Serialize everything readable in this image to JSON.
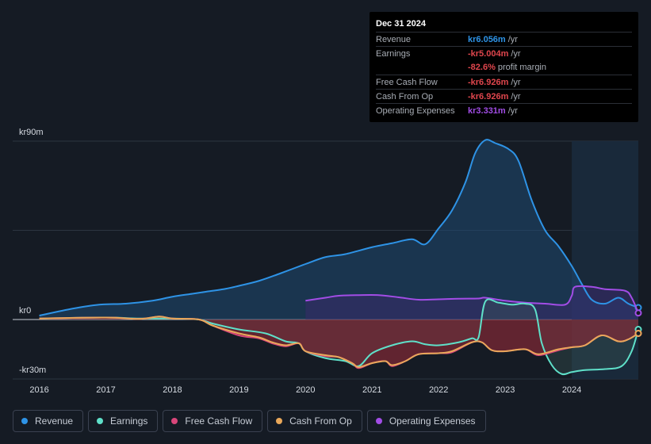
{
  "tooltip": {
    "date": "Dec 31 2024",
    "rows": [
      {
        "label": "Revenue",
        "value": "kr6.056m",
        "unit": "/yr",
        "color": "#2e93e6"
      },
      {
        "label": "Earnings",
        "value": "-kr5.004m",
        "unit": "/yr",
        "color": "#e0464d"
      },
      {
        "label": "",
        "value": "-82.6%",
        "unit": "profit margin",
        "color": "#e0464d"
      },
      {
        "label": "Free Cash Flow",
        "value": "-kr6.926m",
        "unit": "/yr",
        "color": "#e0464d"
      },
      {
        "label": "Cash From Op",
        "value": "-kr6.926m",
        "unit": "/yr",
        "color": "#e0464d"
      },
      {
        "label": "Operating Expenses",
        "value": "kr3.331m",
        "unit": "/yr",
        "color": "#a24de6"
      }
    ]
  },
  "legend": [
    {
      "label": "Revenue",
      "color": "#2e93e6"
    },
    {
      "label": "Earnings",
      "color": "#5fe0c9"
    },
    {
      "label": "Free Cash Flow",
      "color": "#d9467a"
    },
    {
      "label": "Cash From Op",
      "color": "#e9a85a"
    },
    {
      "label": "Operating Expenses",
      "color": "#a24de6"
    }
  ],
  "chart_data": {
    "type": "area",
    "title": "",
    "ylabel": "",
    "ylim": [
      -30,
      90
    ],
    "y_tick_labels": [
      {
        "value": 90,
        "label": "kr90m"
      },
      {
        "value": 0,
        "label": "kr0"
      },
      {
        "value": -30,
        "label": "-kr30m"
      }
    ],
    "x_tick_labels": [
      {
        "value": 2016,
        "label": "2016"
      },
      {
        "value": 2017,
        "label": "2017"
      },
      {
        "value": 2018,
        "label": "2018"
      },
      {
        "value": 2019,
        "label": "2019"
      },
      {
        "value": 2020,
        "label": "2020"
      },
      {
        "value": 2021,
        "label": "2021"
      },
      {
        "value": 2022,
        "label": "2022"
      },
      {
        "value": 2023,
        "label": "2023"
      },
      {
        "value": 2024,
        "label": "2024"
      }
    ],
    "xlim": [
      2015.6,
      2025.0
    ],
    "highlight_start": 2024.0,
    "series": [
      {
        "name": "Revenue",
        "color": "#2e93e6",
        "points": [
          [
            2016.0,
            2.0
          ],
          [
            2016.5,
            5.5
          ],
          [
            2016.9,
            7.5
          ],
          [
            2017.3,
            8.0
          ],
          [
            2017.7,
            9.5
          ],
          [
            2018.0,
            11.5
          ],
          [
            2018.3,
            13.0
          ],
          [
            2018.5,
            14.0
          ],
          [
            2018.8,
            15.5
          ],
          [
            2019.0,
            17.0
          ],
          [
            2019.3,
            19.5
          ],
          [
            2019.6,
            23.0
          ],
          [
            2020.0,
            28.0
          ],
          [
            2020.3,
            31.5
          ],
          [
            2020.6,
            33.0
          ],
          [
            2021.0,
            36.5
          ],
          [
            2021.3,
            38.5
          ],
          [
            2021.6,
            40.5
          ],
          [
            2021.8,
            38.0
          ],
          [
            2022.0,
            46.0
          ],
          [
            2022.2,
            55.0
          ],
          [
            2022.4,
            69.0
          ],
          [
            2022.55,
            84.0
          ],
          [
            2022.7,
            90.5
          ],
          [
            2022.85,
            89.0
          ],
          [
            2023.05,
            86.0
          ],
          [
            2023.2,
            80.0
          ],
          [
            2023.4,
            60.0
          ],
          [
            2023.6,
            45.0
          ],
          [
            2023.8,
            37.0
          ],
          [
            2024.0,
            27.0
          ],
          [
            2024.15,
            18.0
          ],
          [
            2024.3,
            10.0
          ],
          [
            2024.5,
            8.0
          ],
          [
            2024.7,
            11.0
          ],
          [
            2024.85,
            8.0
          ],
          [
            2025.0,
            6.0
          ]
        ]
      },
      {
        "name": "Operating Expenses",
        "color": "#a24de6",
        "points": [
          [
            2020.0,
            9.5
          ],
          [
            2020.3,
            11.0
          ],
          [
            2020.5,
            12.0
          ],
          [
            2020.8,
            12.3
          ],
          [
            2021.1,
            12.3
          ],
          [
            2021.4,
            11.2
          ],
          [
            2021.7,
            10.0
          ],
          [
            2022.0,
            10.2
          ],
          [
            2022.3,
            10.5
          ],
          [
            2022.6,
            10.6
          ],
          [
            2022.7,
            11.0
          ],
          [
            2023.0,
            9.5
          ],
          [
            2023.3,
            8.5
          ],
          [
            2023.6,
            8.0
          ],
          [
            2023.9,
            7.5
          ],
          [
            2024.0,
            12.0
          ],
          [
            2024.05,
            16.5
          ],
          [
            2024.3,
            16.5
          ],
          [
            2024.5,
            15.3
          ],
          [
            2024.8,
            14.5
          ],
          [
            2024.9,
            11.0
          ],
          [
            2025.0,
            3.3
          ]
        ]
      },
      {
        "name": "Earnings",
        "color": "#5fe0c9",
        "points": [
          [
            2016.0,
            0.5
          ],
          [
            2017.0,
            1.0
          ],
          [
            2017.5,
            0.5
          ],
          [
            2018.0,
            0.5
          ],
          [
            2018.4,
            0.0
          ],
          [
            2018.6,
            -2.0
          ],
          [
            2019.0,
            -5.0
          ],
          [
            2019.4,
            -7.0
          ],
          [
            2019.7,
            -11.0
          ],
          [
            2019.9,
            -12.0
          ],
          [
            2020.0,
            -16.0
          ],
          [
            2020.3,
            -19.5
          ],
          [
            2020.6,
            -21.0
          ],
          [
            2020.8,
            -23.5
          ],
          [
            2021.0,
            -17.0
          ],
          [
            2021.3,
            -13.0
          ],
          [
            2021.6,
            -11.0
          ],
          [
            2021.8,
            -12.5
          ],
          [
            2022.0,
            -13.0
          ],
          [
            2022.3,
            -11.5
          ],
          [
            2022.5,
            -9.5
          ],
          [
            2022.6,
            -9.0
          ],
          [
            2022.7,
            9.0
          ],
          [
            2022.9,
            8.5
          ],
          [
            2023.1,
            7.5
          ],
          [
            2023.3,
            8.0
          ],
          [
            2023.45,
            5.0
          ],
          [
            2023.55,
            -12.0
          ],
          [
            2023.7,
            -23.0
          ],
          [
            2023.85,
            -27.5
          ],
          [
            2024.0,
            -26.5
          ],
          [
            2024.2,
            -25.5
          ],
          [
            2024.5,
            -25.0
          ],
          [
            2024.75,
            -23.5
          ],
          [
            2024.9,
            -16.0
          ],
          [
            2025.0,
            -5.0
          ]
        ]
      },
      {
        "name": "Free Cash Flow",
        "color": "#d9467a",
        "points": [
          [
            2016.0,
            0.5
          ],
          [
            2017.0,
            1.0
          ],
          [
            2017.5,
            0.3
          ],
          [
            2017.8,
            1.5
          ],
          [
            2018.0,
            0.5
          ],
          [
            2018.4,
            0.0
          ],
          [
            2018.6,
            -3.0
          ],
          [
            2019.0,
            -8.0
          ],
          [
            2019.3,
            -9.5
          ],
          [
            2019.5,
            -12.0
          ],
          [
            2019.7,
            -13.5
          ],
          [
            2019.9,
            -12.0
          ],
          [
            2020.0,
            -16.0
          ],
          [
            2020.3,
            -18.5
          ],
          [
            2020.5,
            -19.0
          ],
          [
            2020.7,
            -22.0
          ],
          [
            2020.8,
            -24.5
          ],
          [
            2021.0,
            -22.0
          ],
          [
            2021.2,
            -21.0
          ],
          [
            2021.3,
            -23.5
          ],
          [
            2021.5,
            -21.0
          ],
          [
            2021.7,
            -17.5
          ],
          [
            2022.0,
            -17.0
          ],
          [
            2022.2,
            -16.5
          ],
          [
            2022.5,
            -11.5
          ],
          [
            2022.65,
            -11.5
          ],
          [
            2022.8,
            -15.5
          ],
          [
            2023.0,
            -16.0
          ],
          [
            2023.3,
            -15.0
          ],
          [
            2023.5,
            -18.0
          ],
          [
            2023.8,
            -15.5
          ],
          [
            2024.0,
            -14.0
          ],
          [
            2024.2,
            -13.0
          ],
          [
            2024.45,
            -8.0
          ],
          [
            2024.7,
            -11.0
          ],
          [
            2024.85,
            -10.0
          ],
          [
            2025.0,
            -7.0
          ]
        ]
      },
      {
        "name": "Cash From Op",
        "color": "#e9a85a",
        "points": [
          [
            2016.0,
            0.5
          ],
          [
            2017.0,
            1.0
          ],
          [
            2017.5,
            0.3
          ],
          [
            2017.8,
            1.5
          ],
          [
            2018.0,
            0.5
          ],
          [
            2018.4,
            0.0
          ],
          [
            2018.6,
            -3.0
          ],
          [
            2019.0,
            -7.0
          ],
          [
            2019.3,
            -9.0
          ],
          [
            2019.5,
            -11.5
          ],
          [
            2019.7,
            -13.0
          ],
          [
            2019.9,
            -12.0
          ],
          [
            2020.0,
            -16.0
          ],
          [
            2020.3,
            -18.0
          ],
          [
            2020.5,
            -19.0
          ],
          [
            2020.7,
            -22.0
          ],
          [
            2020.8,
            -24.0
          ],
          [
            2021.0,
            -22.0
          ],
          [
            2021.2,
            -21.0
          ],
          [
            2021.3,
            -23.0
          ],
          [
            2021.5,
            -21.0
          ],
          [
            2021.7,
            -17.5
          ],
          [
            2022.0,
            -17.0
          ],
          [
            2022.2,
            -16.0
          ],
          [
            2022.5,
            -11.5
          ],
          [
            2022.65,
            -11.5
          ],
          [
            2022.8,
            -15.5
          ],
          [
            2023.0,
            -16.0
          ],
          [
            2023.3,
            -15.0
          ],
          [
            2023.5,
            -17.5
          ],
          [
            2023.8,
            -15.0
          ],
          [
            2024.0,
            -14.0
          ],
          [
            2024.2,
            -13.0
          ],
          [
            2024.45,
            -8.0
          ],
          [
            2024.7,
            -11.0
          ],
          [
            2024.85,
            -10.0
          ],
          [
            2025.0,
            -7.0
          ]
        ]
      }
    ]
  }
}
